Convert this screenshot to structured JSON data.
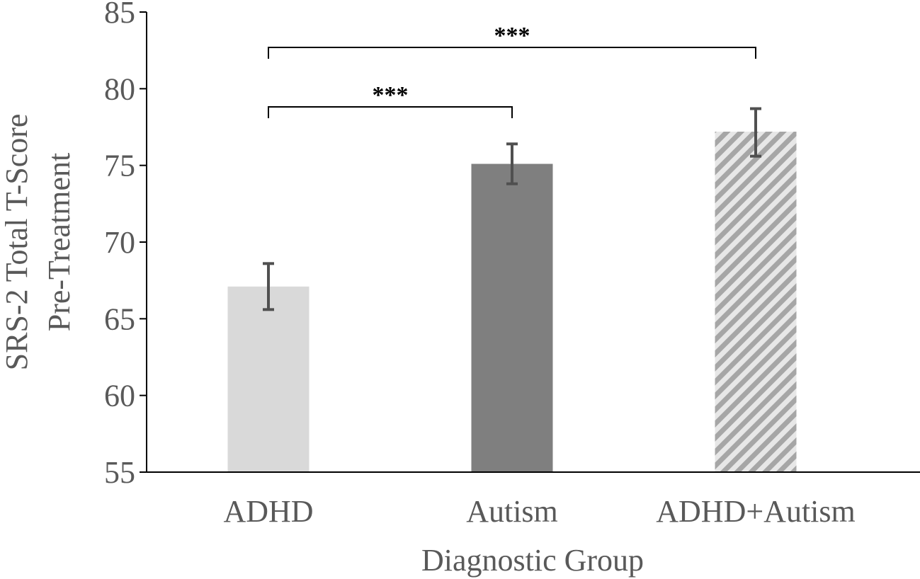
{
  "chart_data": {
    "type": "bar",
    "title": "",
    "xlabel": "Diagnostic Group",
    "ylabel_lines": [
      "SRS-2 Total T-Score",
      "Pre-Treatment"
    ],
    "categories": [
      "ADHD",
      "Autism",
      "ADHD+Autism"
    ],
    "values": [
      67.1,
      75.1,
      77.2
    ],
    "error_bars": [
      {
        "low": 65.6,
        "high": 68.6
      },
      {
        "low": 73.8,
        "high": 76.4
      },
      {
        "low": 75.6,
        "high": 78.7
      }
    ],
    "ylim": [
      55,
      85
    ],
    "yticks": [
      55,
      60,
      65,
      70,
      75,
      80,
      85
    ],
    "grid": false,
    "legend": "none",
    "bar_styles": [
      {
        "fill": "#d9d9d9",
        "pattern": "solid"
      },
      {
        "fill": "#7f7f7f",
        "pattern": "solid"
      },
      {
        "fill": "#a6a6a6",
        "pattern": "diagonal-stripes",
        "stripe_bg": "#e7e7e7"
      }
    ],
    "significance": [
      {
        "from": 0,
        "to": 2,
        "label": "***"
      },
      {
        "from": 0,
        "to": 1,
        "label": "***"
      }
    ],
    "colors": {
      "axis": "#000000",
      "text": "#595959",
      "error_bar": "#505050",
      "bracket": "#000000"
    }
  }
}
